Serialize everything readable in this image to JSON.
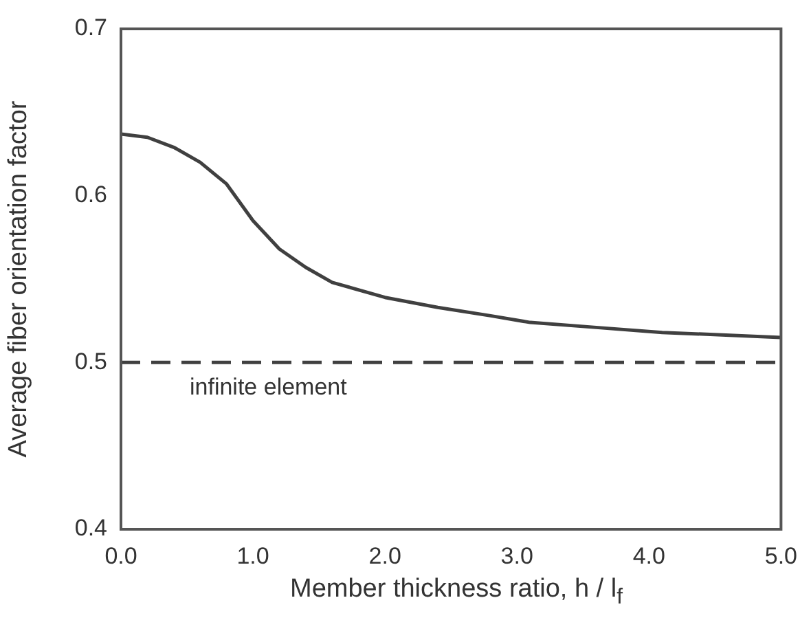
{
  "chart_data": {
    "type": "line",
    "xlabel": "Member thickness ratio, h / l$_{f}$",
    "ylabel": "Average fiber orientation factor",
    "xlim": [
      0,
      5
    ],
    "xticks": [
      {
        "value": 0,
        "label": "0.0"
      },
      {
        "value": 1,
        "label": "1.0"
      },
      {
        "value": 2,
        "label": "2.0"
      },
      {
        "value": 3,
        "label": "3.0"
      },
      {
        "value": 4,
        "label": "4.0"
      },
      {
        "value": 5,
        "label": "5.0"
      }
    ],
    "ylim": [
      0.4,
      0.7
    ],
    "yticks": [
      {
        "value": 0.4,
        "label": "0.4"
      },
      {
        "value": 0.5,
        "label": "0.5"
      },
      {
        "value": 0.6,
        "label": "0.6"
      },
      {
        "value": 0.7,
        "label": "0.7"
      }
    ],
    "x": [
      0,
      0.2,
      0.4,
      0.6,
      0.8,
      1.0,
      1.2,
      1.4,
      1.6,
      2.0,
      2.4,
      2.8,
      3.1,
      3.6,
      4.1,
      5.0
    ],
    "series": [
      {
        "color": "#404040",
        "values": [
          0.637,
          0.635,
          0.629,
          0.62,
          0.607,
          0.585,
          0.568,
          0.557,
          0.548,
          0.539,
          0.533,
          0.528,
          0.524,
          0.521,
          0.518,
          0.515
        ]
      }
    ],
    "ref_lines": [
      {
        "axis": "y",
        "value": 0.5,
        "label": "infinite element",
        "color": "#404040",
        "line_style": "dashed"
      }
    ],
    "grid": false,
    "legend": false,
    "marker": "none",
    "line_style": "solid"
  }
}
